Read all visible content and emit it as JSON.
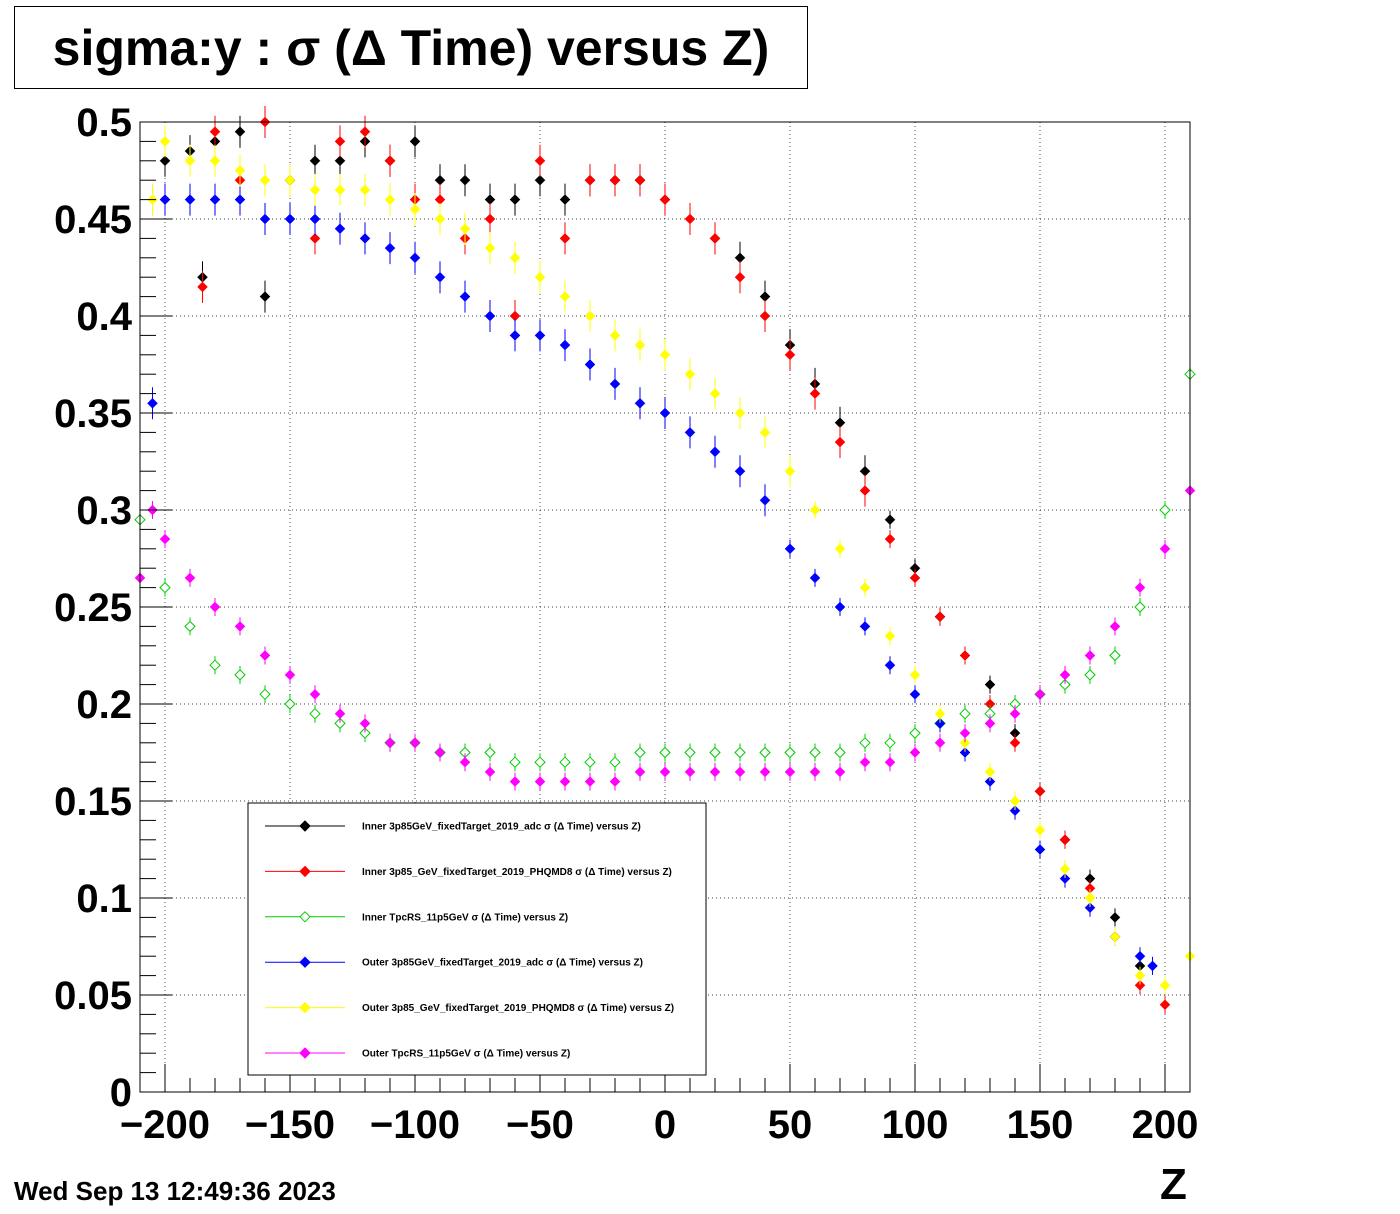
{
  "title": "sigma:y : σ (Δ Time) versus Z)",
  "timestamp": "Wed Sep 13 12:49:36 2023",
  "chart_data": {
    "type": "scatter",
    "title": "sigma:y : σ (Δ Time) versus Z)",
    "xlabel": "Z",
    "ylabel": "",
    "xlim": [
      -210,
      210
    ],
    "ylim": [
      0,
      0.5
    ],
    "x_ticks": [
      -200,
      -150,
      -100,
      -50,
      0,
      50,
      100,
      150,
      200
    ],
    "x_tick_labels": [
      "−200",
      "−150",
      "−100",
      "−50",
      "0",
      "50",
      "100",
      "150",
      "200"
    ],
    "y_ticks": [
      0,
      0.05,
      0.1,
      0.15,
      0.2,
      0.25,
      0.3,
      0.35,
      0.4,
      0.45,
      0.5
    ],
    "y_tick_labels": [
      "0",
      "0.05",
      "0.1",
      "0.15",
      "0.2",
      "0.25",
      "0.3",
      "0.35",
      "0.4",
      "0.45",
      "0.5"
    ],
    "grid": true,
    "legend_position": "bottom-left",
    "series": [
      {
        "name": "Inner  3p85GeV_fixedTarget_2019_adc σ (Δ Time) versus Z)",
        "color": "#000000",
        "marker": "filled-diamond",
        "x": [
          -200,
          -190,
          -185,
          -180,
          -170,
          -160,
          -150,
          -140,
          -130,
          -120,
          -110,
          -100,
          -90,
          -80,
          -70,
          -60,
          -50,
          -40,
          -30,
          -20,
          -10,
          0,
          10,
          20,
          30,
          40,
          50,
          60,
          70,
          80,
          90,
          100,
          110,
          120,
          130,
          140,
          150,
          160,
          170,
          180,
          190
        ],
        "y": [
          0.48,
          0.485,
          0.42,
          0.49,
          0.495,
          0.41,
          0.47,
          0.48,
          0.48,
          0.49,
          0.48,
          0.49,
          0.47,
          0.47,
          0.46,
          0.46,
          0.47,
          0.46,
          0.47,
          0.47,
          0.47,
          0.46,
          0.45,
          0.44,
          0.43,
          0.41,
          0.385,
          0.365,
          0.345,
          0.32,
          0.295,
          0.27,
          0.245,
          0.225,
          0.21,
          0.185,
          0.155,
          0.13,
          0.11,
          0.09,
          0.065
        ]
      },
      {
        "name": "Inner  3p85_GeV_fixedTarget_2019_PHQMD8 σ (Δ Time) versus Z)",
        "color": "#ff0000",
        "marker": "filled-diamond",
        "x": [
          -200,
          -185,
          -180,
          -170,
          -160,
          -150,
          -140,
          -130,
          -120,
          -110,
          -100,
          -90,
          -80,
          -70,
          -60,
          -50,
          -40,
          -30,
          -20,
          -10,
          0,
          10,
          20,
          30,
          40,
          50,
          60,
          70,
          80,
          90,
          100,
          110,
          120,
          130,
          140,
          150,
          160,
          170,
          180,
          190,
          200
        ],
        "y": [
          0.46,
          0.415,
          0.495,
          0.47,
          0.5,
          0.47,
          0.44,
          0.49,
          0.495,
          0.48,
          0.46,
          0.46,
          0.44,
          0.45,
          0.4,
          0.48,
          0.44,
          0.47,
          0.47,
          0.47,
          0.46,
          0.45,
          0.44,
          0.42,
          0.4,
          0.38,
          0.36,
          0.335,
          0.31,
          0.285,
          0.265,
          0.245,
          0.225,
          0.2,
          0.18,
          0.155,
          0.13,
          0.105,
          0.08,
          0.055,
          0.045
        ]
      },
      {
        "name": "Inner  TpcRS_11p5GeV σ (Δ Time) versus Z)",
        "color": "#00cc00",
        "marker": "open-diamond",
        "x": [
          -210,
          -200,
          -190,
          -180,
          -170,
          -160,
          -150,
          -140,
          -130,
          -120,
          -110,
          -100,
          -90,
          -80,
          -70,
          -60,
          -50,
          -40,
          -30,
          -20,
          -10,
          0,
          10,
          20,
          30,
          40,
          50,
          60,
          70,
          80,
          90,
          100,
          110,
          120,
          130,
          140,
          150,
          160,
          170,
          180,
          190,
          200,
          210
        ],
        "y": [
          0.295,
          0.26,
          0.24,
          0.22,
          0.215,
          0.205,
          0.2,
          0.195,
          0.19,
          0.185,
          0.18,
          0.18,
          0.175,
          0.175,
          0.175,
          0.17,
          0.17,
          0.17,
          0.17,
          0.17,
          0.175,
          0.175,
          0.175,
          0.175,
          0.175,
          0.175,
          0.175,
          0.175,
          0.175,
          0.18,
          0.18,
          0.185,
          0.19,
          0.195,
          0.195,
          0.2,
          0.205,
          0.21,
          0.215,
          0.225,
          0.25,
          0.3,
          0.37
        ]
      },
      {
        "name": "Outer  3p85GeV_fixedTarget_2019_adc σ (Δ Time) versus Z)",
        "color": "#0000ff",
        "marker": "filled-diamond",
        "x": [
          -205,
          -200,
          -190,
          -180,
          -170,
          -160,
          -150,
          -140,
          -130,
          -120,
          -110,
          -100,
          -90,
          -80,
          -70,
          -60,
          -50,
          -40,
          -30,
          -20,
          -10,
          0,
          10,
          20,
          30,
          40,
          50,
          60,
          70,
          80,
          90,
          100,
          110,
          120,
          130,
          140,
          150,
          160,
          170,
          180,
          190,
          195
        ],
        "y": [
          0.355,
          0.46,
          0.46,
          0.46,
          0.46,
          0.45,
          0.45,
          0.45,
          0.445,
          0.44,
          0.435,
          0.43,
          0.42,
          0.41,
          0.4,
          0.39,
          0.39,
          0.385,
          0.375,
          0.365,
          0.355,
          0.35,
          0.34,
          0.33,
          0.32,
          0.305,
          0.28,
          0.265,
          0.25,
          0.24,
          0.22,
          0.205,
          0.19,
          0.175,
          0.16,
          0.145,
          0.125,
          0.11,
          0.095,
          0.08,
          0.07,
          0.065
        ]
      },
      {
        "name": "Outer  3p85_GeV_fixedTarget_2019_PHQMD8 σ (Δ Time) versus Z)",
        "color": "#ffff00",
        "marker": "filled-diamond",
        "x": [
          -205,
          -200,
          -190,
          -180,
          -170,
          -160,
          -150,
          -140,
          -130,
          -120,
          -110,
          -100,
          -90,
          -80,
          -70,
          -60,
          -50,
          -40,
          -30,
          -20,
          -10,
          0,
          10,
          20,
          30,
          40,
          50,
          60,
          70,
          80,
          90,
          100,
          110,
          120,
          130,
          140,
          150,
          160,
          170,
          180,
          190,
          200,
          210
        ],
        "y": [
          0.46,
          0.49,
          0.48,
          0.48,
          0.475,
          0.47,
          0.47,
          0.465,
          0.465,
          0.465,
          0.46,
          0.455,
          0.45,
          0.445,
          0.435,
          0.43,
          0.42,
          0.41,
          0.4,
          0.39,
          0.385,
          0.38,
          0.37,
          0.36,
          0.35,
          0.34,
          0.32,
          0.3,
          0.28,
          0.26,
          0.235,
          0.215,
          0.195,
          0.18,
          0.165,
          0.15,
          0.135,
          0.115,
          0.1,
          0.08,
          0.06,
          0.055,
          0.07
        ]
      },
      {
        "name": "Outer  TpcRS_11p5GeV σ (Δ Time) versus Z)",
        "color": "#ff00ff",
        "marker": "filled-diamond",
        "x": [
          -210,
          -205,
          -200,
          -190,
          -180,
          -170,
          -160,
          -150,
          -140,
          -130,
          -120,
          -110,
          -100,
          -90,
          -80,
          -70,
          -60,
          -50,
          -40,
          -30,
          -20,
          -10,
          0,
          10,
          20,
          30,
          40,
          50,
          60,
          70,
          80,
          90,
          100,
          110,
          120,
          130,
          140,
          150,
          160,
          170,
          180,
          190,
          200,
          210
        ],
        "y": [
          0.265,
          0.3,
          0.285,
          0.265,
          0.25,
          0.24,
          0.225,
          0.215,
          0.205,
          0.195,
          0.19,
          0.18,
          0.18,
          0.175,
          0.17,
          0.165,
          0.16,
          0.16,
          0.16,
          0.16,
          0.16,
          0.165,
          0.165,
          0.165,
          0.165,
          0.165,
          0.165,
          0.165,
          0.165,
          0.165,
          0.17,
          0.17,
          0.175,
          0.18,
          0.185,
          0.19,
          0.195,
          0.205,
          0.215,
          0.225,
          0.24,
          0.26,
          0.28,
          0.31
        ]
      }
    ]
  }
}
